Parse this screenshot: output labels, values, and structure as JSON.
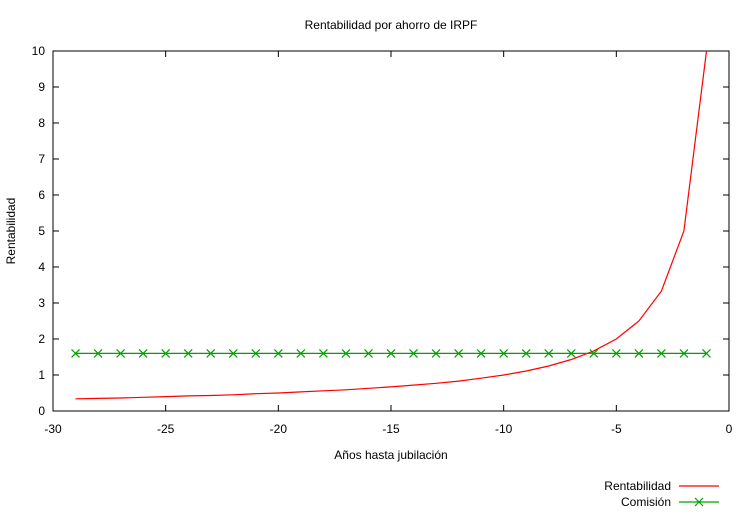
{
  "chart_data": {
    "type": "line",
    "title": "Rentabilidad por ahorro de IRPF",
    "xlabel": "Años hasta jubilación",
    "ylabel": "Rentabilidad",
    "xlim": [
      -30,
      0
    ],
    "ylim": [
      0,
      10
    ],
    "x_ticks": [
      -30,
      -25,
      -20,
      -15,
      -10,
      -5,
      0
    ],
    "y_ticks": [
      0,
      1,
      2,
      3,
      4,
      5,
      6,
      7,
      8,
      9,
      10
    ],
    "grid": false,
    "legend_position": "bottom-right",
    "x": [
      -29,
      -28,
      -27,
      -26,
      -25,
      -24,
      -23,
      -22,
      -21,
      -20,
      -19,
      -18,
      -17,
      -16,
      -15,
      -14,
      -13,
      -12,
      -11,
      -10,
      -9,
      -8,
      -7,
      -6,
      -5,
      -4,
      -3,
      -2,
      -1
    ],
    "series": [
      {
        "name": "Rentabilidad",
        "color": "#ff0000",
        "marker": "none",
        "values": [
          0.34,
          0.35,
          0.36,
          0.38,
          0.4,
          0.42,
          0.43,
          0.45,
          0.48,
          0.5,
          0.53,
          0.56,
          0.59,
          0.63,
          0.67,
          0.72,
          0.77,
          0.83,
          0.91,
          1.0,
          1.11,
          1.25,
          1.43,
          1.67,
          2.0,
          2.5,
          3.33,
          5.0,
          10.0
        ]
      },
      {
        "name": "Comisión",
        "color": "#00a000",
        "marker": "x",
        "values": [
          1.6,
          1.6,
          1.6,
          1.6,
          1.6,
          1.6,
          1.6,
          1.6,
          1.6,
          1.6,
          1.6,
          1.6,
          1.6,
          1.6,
          1.6,
          1.6,
          1.6,
          1.6,
          1.6,
          1.6,
          1.6,
          1.6,
          1.6,
          1.6,
          1.6,
          1.6,
          1.6,
          1.6,
          1.6
        ]
      }
    ]
  }
}
